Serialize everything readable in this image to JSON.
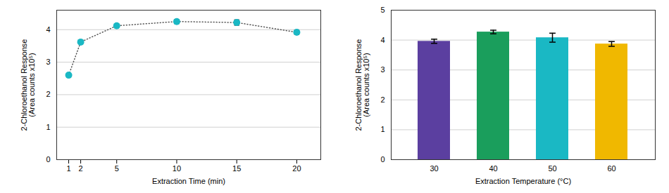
{
  "chart_data": [
    {
      "type": "line",
      "x": [
        1,
        2,
        5,
        10,
        15,
        20
      ],
      "values": [
        2.6,
        3.62,
        4.12,
        4.25,
        4.22,
        3.92
      ],
      "yerr": [
        0.0,
        0.0,
        0.0,
        0.06,
        0.08,
        0.07
      ],
      "xlabel": "Extraction Time (min)",
      "ylabel": "2-Chloroethanol Response\n(Area counts x10⁵)",
      "xlim": [
        0,
        22
      ],
      "xticks": [
        1,
        2,
        5,
        10,
        15,
        20
      ],
      "ylim": [
        0,
        4.6
      ],
      "yticks": [
        0,
        1,
        2,
        3,
        4
      ],
      "grid": true,
      "color": "#1ab8c4",
      "marker": "o",
      "line_style": "dotted"
    },
    {
      "type": "bar",
      "categories": [
        "30",
        "40",
        "50",
        "60"
      ],
      "values": [
        3.96,
        4.27,
        4.08,
        3.87
      ],
      "yerr": [
        0.07,
        0.06,
        0.15,
        0.08
      ],
      "colors": [
        "#5b3fa0",
        "#1a9e5c",
        "#1ab8c4",
        "#f0b800"
      ],
      "xlabel": "Extraction Temperature (°C)",
      "ylabel": "2-Chloroethanol Response\n(Area counts x10⁵)",
      "ylim": [
        0,
        5.0
      ],
      "yticks": [
        0,
        1,
        2,
        3,
        4,
        5
      ],
      "grid": true
    }
  ]
}
